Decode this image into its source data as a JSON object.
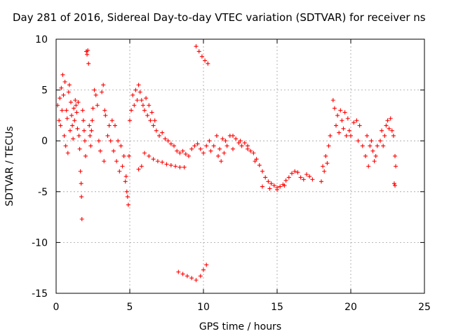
{
  "chart_data": {
    "type": "scatter",
    "title": "Day 281 of 2016, Sidereal Day-to-day VTEC variation (SDTVAR) for receiver ns",
    "xlabel": "GPS time / hours",
    "ylabel": "SDTVAR / TECUs",
    "xlim": [
      0,
      25
    ],
    "ylim": [
      -15,
      10
    ],
    "grid": true,
    "marker": "+",
    "color": "#ff0000",
    "xticks": [
      0,
      5,
      10,
      15,
      20,
      25
    ],
    "yticks": [
      -15,
      -10,
      -5,
      0,
      5,
      10
    ],
    "xtick_labels": [
      "0",
      "5",
      "10",
      "15",
      "20",
      "25"
    ],
    "ytick_labels": [
      "-15",
      "-10",
      "-5",
      "0",
      "5",
      "10"
    ],
    "series": [
      {
        "name": "SDTVAR",
        "points": [
          [
            0.1,
            3.5
          ],
          [
            0.2,
            2.0
          ],
          [
            0.25,
            4.2
          ],
          [
            0.3,
            1.5
          ],
          [
            0.35,
            5.2
          ],
          [
            0.4,
            3.0
          ],
          [
            0.45,
            6.5
          ],
          [
            0.5,
            4.5
          ],
          [
            0.55,
            0.5
          ],
          [
            0.6,
            5.8
          ],
          [
            0.65,
            -0.5
          ],
          [
            0.7,
            3.0
          ],
          [
            0.75,
            2.2
          ],
          [
            0.8,
            -1.2
          ],
          [
            0.85,
            4.8
          ],
          [
            0.9,
            5.5
          ],
          [
            0.95,
            1.0
          ],
          [
            1.0,
            3.8
          ],
          [
            1.05,
            2.5
          ],
          [
            1.1,
            1.5
          ],
          [
            1.15,
            0.2
          ],
          [
            1.2,
            3.2
          ],
          [
            1.25,
            2.0
          ],
          [
            1.3,
            4.0
          ],
          [
            1.35,
            3.5
          ],
          [
            1.4,
            2.8
          ],
          [
            1.45,
            1.2
          ],
          [
            1.5,
            3.8
          ],
          [
            1.55,
            0.5
          ],
          [
            1.6,
            -0.8
          ],
          [
            1.65,
            -3.0
          ],
          [
            1.7,
            -4.2
          ],
          [
            1.72,
            -5.5
          ],
          [
            1.75,
            -7.7
          ],
          [
            1.8,
            3.0
          ],
          [
            1.85,
            2.0
          ],
          [
            1.9,
            1.0
          ],
          [
            1.95,
            0.0
          ],
          [
            2.0,
            -1.5
          ],
          [
            2.05,
            8.8
          ],
          [
            2.1,
            8.5
          ],
          [
            2.15,
            8.9
          ],
          [
            2.2,
            7.6
          ],
          [
            2.25,
            1.5
          ],
          [
            2.3,
            0.5
          ],
          [
            2.35,
            -0.5
          ],
          [
            2.4,
            1.0
          ],
          [
            2.45,
            2.0
          ],
          [
            2.5,
            3.2
          ],
          [
            2.6,
            5.0
          ],
          [
            2.7,
            4.5
          ],
          [
            2.8,
            3.5
          ],
          [
            2.9,
            0.0
          ],
          [
            3.0,
            -1.0
          ],
          [
            3.1,
            4.8
          ],
          [
            3.2,
            5.5
          ],
          [
            3.25,
            -2.0
          ],
          [
            3.3,
            3.0
          ],
          [
            3.35,
            2.5
          ],
          [
            3.5,
            0.5
          ],
          [
            3.6,
            1.5
          ],
          [
            3.7,
            0.0
          ],
          [
            3.8,
            2.0
          ],
          [
            3.9,
            -1.0
          ],
          [
            4.0,
            1.5
          ],
          [
            4.1,
            -2.0
          ],
          [
            4.2,
            0.0
          ],
          [
            4.3,
            -3.0
          ],
          [
            4.4,
            -0.5
          ],
          [
            4.5,
            -2.5
          ],
          [
            4.6,
            -1.5
          ],
          [
            4.7,
            -4.0
          ],
          [
            4.75,
            -3.5
          ],
          [
            4.8,
            -5.0
          ],
          [
            4.85,
            -5.5
          ],
          [
            4.9,
            -6.3
          ],
          [
            4.95,
            -1.5
          ],
          [
            5.0,
            2.0
          ],
          [
            5.1,
            3.0
          ],
          [
            5.2,
            4.5
          ],
          [
            5.3,
            3.5
          ],
          [
            5.4,
            5.0
          ],
          [
            5.5,
            4.0
          ],
          [
            5.6,
            5.5
          ],
          [
            5.7,
            4.8
          ],
          [
            5.8,
            4.0
          ],
          [
            5.9,
            3.5
          ],
          [
            6.0,
            3.0
          ],
          [
            6.1,
            4.2
          ],
          [
            6.2,
            2.5
          ],
          [
            6.3,
            3.5
          ],
          [
            6.4,
            2.0
          ],
          [
            6.5,
            2.8
          ],
          [
            6.6,
            1.5
          ],
          [
            6.7,
            2.0
          ],
          [
            6.8,
            1.0
          ],
          [
            7.0,
            0.5
          ],
          [
            7.2,
            0.8
          ],
          [
            7.4,
            0.2
          ],
          [
            7.6,
            0.0
          ],
          [
            7.8,
            -0.3
          ],
          [
            8.0,
            -0.5
          ],
          [
            8.2,
            -1.0
          ],
          [
            8.4,
            -1.2
          ],
          [
            8.6,
            -1.0
          ],
          [
            8.8,
            -1.3
          ],
          [
            9.0,
            -1.5
          ],
          [
            9.2,
            -0.8
          ],
          [
            9.4,
            -0.5
          ],
          [
            9.6,
            -0.3
          ],
          [
            9.8,
            -0.8
          ],
          [
            10.0,
            -1.2
          ],
          [
            10.2,
            -0.5
          ],
          [
            10.4,
            0.0
          ],
          [
            5.8,
            -2.5
          ],
          [
            6.0,
            -1.2
          ],
          [
            6.3,
            -1.5
          ],
          [
            6.6,
            -1.8
          ],
          [
            6.9,
            -2.0
          ],
          [
            7.2,
            -2.1
          ],
          [
            7.5,
            -2.3
          ],
          [
            7.8,
            -2.4
          ],
          [
            8.1,
            -2.5
          ],
          [
            8.4,
            -2.6
          ],
          [
            8.7,
            -2.6
          ],
          [
            5.6,
            -2.8
          ],
          [
            9.5,
            9.3
          ],
          [
            9.7,
            8.8
          ],
          [
            9.9,
            8.3
          ],
          [
            10.1,
            7.9
          ],
          [
            10.3,
            7.6
          ],
          [
            8.3,
            -12.9
          ],
          [
            8.6,
            -13.1
          ],
          [
            8.9,
            -13.3
          ],
          [
            9.2,
            -13.5
          ],
          [
            9.5,
            -13.7
          ],
          [
            9.8,
            -13.3
          ],
          [
            10.0,
            -12.7
          ],
          [
            10.2,
            -12.2
          ],
          [
            10.5,
            -1.0
          ],
          [
            10.7,
            -0.5
          ],
          [
            10.9,
            0.5
          ],
          [
            11.0,
            -1.5
          ],
          [
            11.1,
            -0.8
          ],
          [
            11.2,
            -2.0
          ],
          [
            11.3,
            0.2
          ],
          [
            11.4,
            -1.2
          ],
          [
            11.5,
            0.0
          ],
          [
            11.6,
            -0.5
          ],
          [
            11.8,
            0.5
          ],
          [
            12.0,
            -0.8
          ],
          [
            12.2,
            0.2
          ],
          [
            12.4,
            -0.2
          ],
          [
            12.6,
            -0.5
          ],
          [
            12.8,
            -0.2
          ],
          [
            13.0,
            -0.8
          ],
          [
            13.2,
            -1.0
          ],
          [
            13.4,
            -1.2
          ],
          [
            13.6,
            -1.8
          ],
          [
            13.8,
            -2.4
          ],
          [
            14.0,
            -3.0
          ],
          [
            14.2,
            -3.6
          ],
          [
            14.4,
            -4.0
          ],
          [
            14.6,
            -4.2
          ],
          [
            14.8,
            -4.4
          ],
          [
            15.0,
            -4.6
          ],
          [
            15.2,
            -4.5
          ],
          [
            15.4,
            -4.3
          ],
          [
            15.6,
            -3.9
          ],
          [
            15.8,
            -3.6
          ],
          [
            16.0,
            -3.2
          ],
          [
            16.2,
            -3.0
          ],
          [
            16.4,
            -3.1
          ],
          [
            16.6,
            -3.6
          ],
          [
            16.8,
            -3.8
          ],
          [
            17.0,
            -3.3
          ],
          [
            17.2,
            -3.5
          ],
          [
            17.4,
            -3.8
          ],
          [
            14.0,
            -4.5
          ],
          [
            14.5,
            -4.7
          ],
          [
            15.0,
            -4.8
          ],
          [
            15.5,
            -4.4
          ],
          [
            12.0,
            0.5
          ],
          [
            12.5,
            0.0
          ],
          [
            13.0,
            -0.5
          ],
          [
            13.5,
            -2.0
          ],
          [
            18.0,
            -4.0
          ],
          [
            18.1,
            -2.5
          ],
          [
            18.2,
            -3.0
          ],
          [
            18.3,
            -1.5
          ],
          [
            18.4,
            -2.2
          ],
          [
            18.5,
            -0.5
          ],
          [
            18.6,
            0.5
          ],
          [
            18.8,
            4.0
          ],
          [
            18.9,
            3.2
          ],
          [
            19.0,
            1.5
          ],
          [
            19.1,
            2.5
          ],
          [
            19.2,
            0.8
          ],
          [
            19.3,
            3.0
          ],
          [
            19.4,
            2.0
          ],
          [
            19.5,
            1.2
          ],
          [
            19.6,
            2.8
          ],
          [
            19.7,
            0.5
          ],
          [
            19.8,
            2.2
          ],
          [
            19.9,
            1.0
          ],
          [
            20.0,
            0.5
          ],
          [
            20.2,
            1.8
          ],
          [
            20.4,
            2.0
          ],
          [
            20.5,
            0.0
          ],
          [
            20.6,
            1.5
          ],
          [
            20.8,
            -0.5
          ],
          [
            21.0,
            -1.5
          ],
          [
            21.1,
            0.5
          ],
          [
            21.2,
            -2.5
          ],
          [
            21.3,
            -0.5
          ],
          [
            21.4,
            0.0
          ],
          [
            21.5,
            -1.0
          ],
          [
            21.6,
            -2.0
          ],
          [
            21.7,
            -1.5
          ],
          [
            21.8,
            -0.5
          ],
          [
            22.0,
            0.0
          ],
          [
            22.1,
            1.0
          ],
          [
            22.2,
            -0.5
          ],
          [
            22.3,
            0.5
          ],
          [
            22.4,
            1.5
          ],
          [
            22.5,
            2.0
          ],
          [
            22.6,
            1.2
          ],
          [
            22.7,
            2.2
          ],
          [
            22.8,
            1.0
          ],
          [
            22.9,
            0.5
          ],
          [
            23.0,
            -1.5
          ],
          [
            23.05,
            -2.5
          ],
          [
            22.95,
            -4.2
          ],
          [
            23.0,
            -4.4
          ]
        ]
      }
    ]
  }
}
